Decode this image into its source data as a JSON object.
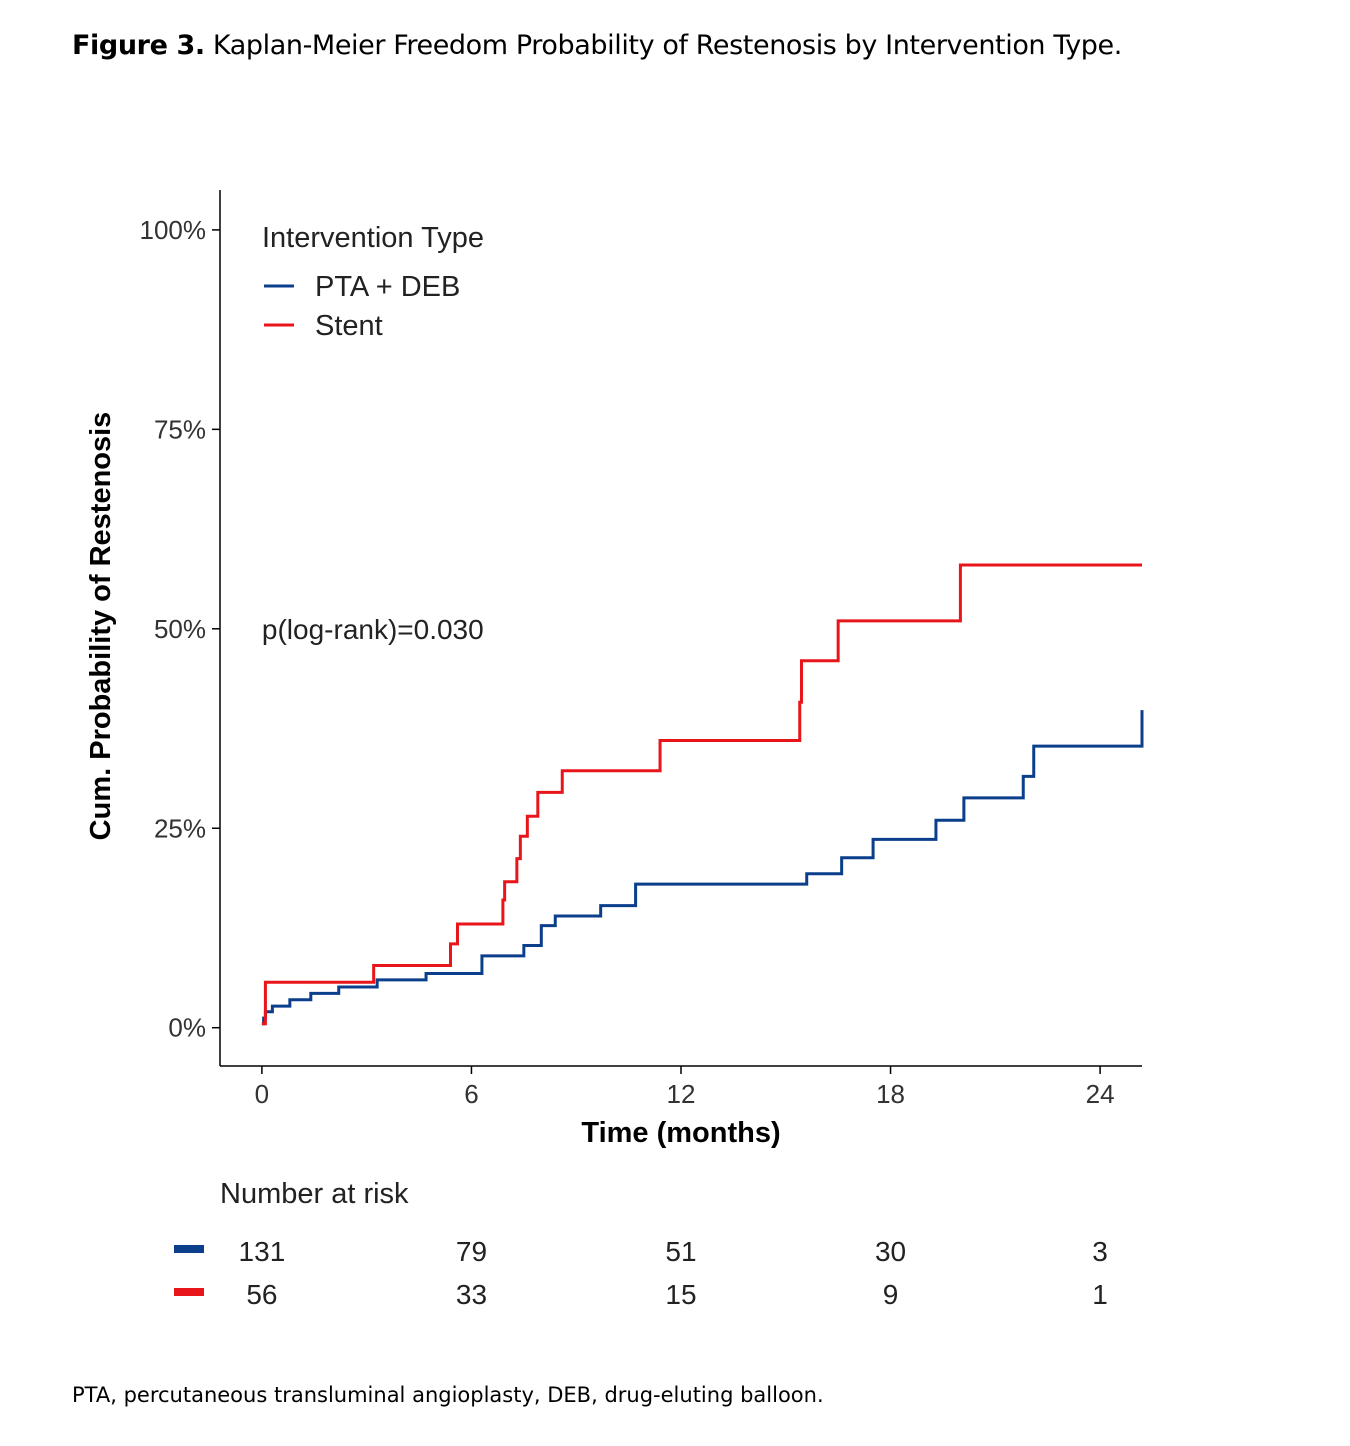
{
  "caption": {
    "label": "Figure 3.",
    "text": "Kaplan-Meier Freedom Probability of Restenosis by Intervention Type."
  },
  "footnote": "PTA, percutaneous transluminal angioplasty, DEB, drug-eluting balloon.",
  "chart_data": {
    "type": "line",
    "subtype": "kaplan-meier-step",
    "title": "",
    "xlabel": "Time (months)",
    "ylabel": "Cum. Probability of Restenosis",
    "xlim": [
      -1.2,
      25.2
    ],
    "ylim": [
      -0.048,
      1.05
    ],
    "x_ticks": [
      0,
      6,
      12,
      18,
      24
    ],
    "x_tick_labels": [
      "0",
      "6",
      "12",
      "18",
      "24"
    ],
    "y_ticks": [
      0,
      0.25,
      0.5,
      0.75,
      1.0
    ],
    "y_tick_labels": [
      "0%",
      "25%",
      "50%",
      "75%",
      "100%"
    ],
    "grid": false,
    "legend": {
      "title": "Intervention Type",
      "position": "top-left"
    },
    "annotation": "p(log-rank)=0.030",
    "series": [
      {
        "name": "PTA + DEB",
        "color": "#0B3F8C",
        "x": [
          0,
          0.05,
          0.1,
          0.3,
          0.8,
          1.4,
          2.2,
          3.3,
          4.7,
          6.3,
          7.5,
          8.0,
          8.4,
          9.7,
          10.7,
          15.6,
          16.6,
          17.5,
          19.3,
          20.1,
          21.8,
          22.1,
          25.2
        ],
        "y": [
          0.005,
          0.012,
          0.02,
          0.027,
          0.035,
          0.043,
          0.051,
          0.06,
          0.068,
          0.09,
          0.103,
          0.128,
          0.14,
          0.153,
          0.18,
          0.193,
          0.213,
          0.236,
          0.26,
          0.288,
          0.315,
          0.353,
          0.398
        ]
      },
      {
        "name": "Stent",
        "color": "#E8161B",
        "x": [
          0,
          0.1,
          3.2,
          5.4,
          5.6,
          6.9,
          6.95,
          7.3,
          7.4,
          7.6,
          7.9,
          8.6,
          11.4,
          15.4,
          15.45,
          16.5,
          20.0,
          25.2
        ],
        "y": [
          0.005,
          0.057,
          0.078,
          0.105,
          0.13,
          0.16,
          0.183,
          0.212,
          0.24,
          0.265,
          0.295,
          0.322,
          0.36,
          0.408,
          0.46,
          0.51,
          0.58,
          0.58
        ]
      }
    ],
    "risk_table": {
      "title": "Number at risk",
      "times": [
        0,
        6,
        12,
        18,
        24
      ],
      "rows": [
        {
          "color": "#0B3F8C",
          "values": [
            "131",
            "79",
            "51",
            "30",
            "3"
          ]
        },
        {
          "color": "#E8161B",
          "values": [
            "56",
            "33",
            "15",
            "9",
            "1"
          ]
        }
      ]
    }
  }
}
